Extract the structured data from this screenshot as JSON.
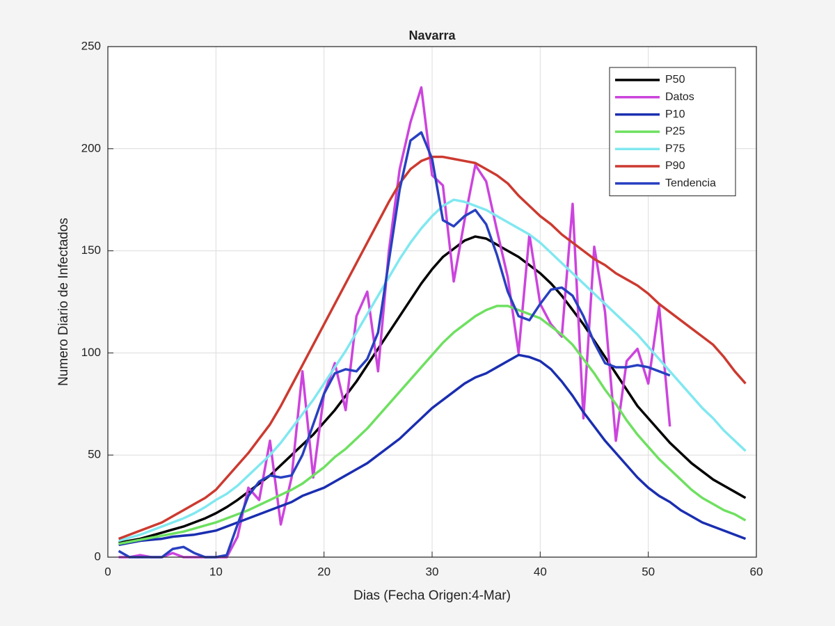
{
  "chart_data": {
    "type": "line",
    "title": "Navarra",
    "xlabel": "Dias (Fecha Origen:4-Mar)",
    "ylabel": "Numero Diario de Infectados",
    "xlim": [
      0,
      60
    ],
    "ylim": [
      0,
      250
    ],
    "xticks": [
      0,
      10,
      20,
      30,
      40,
      50,
      60
    ],
    "yticks": [
      0,
      50,
      100,
      150,
      200,
      250
    ],
    "grid": true,
    "legend": "upper right",
    "series": [
      {
        "name": "P50",
        "color": "#000000",
        "x": [
          1,
          2,
          3,
          4,
          5,
          6,
          7,
          8,
          9,
          10,
          11,
          12,
          13,
          14,
          15,
          16,
          17,
          18,
          19,
          20,
          21,
          22,
          23,
          24,
          25,
          26,
          27,
          28,
          29,
          30,
          31,
          32,
          33,
          34,
          35,
          36,
          37,
          38,
          39,
          40,
          41,
          42,
          43,
          44,
          45,
          46,
          47,
          48,
          49,
          50,
          51,
          52,
          53,
          54,
          55,
          56,
          57,
          58,
          59
        ],
        "values": [
          7,
          8,
          9,
          10.5,
          12,
          13.5,
          15,
          17,
          19,
          21.5,
          24.5,
          28,
          32,
          36,
          40,
          45,
          50,
          55,
          60,
          66,
          72,
          79,
          86,
          94,
          102,
          110,
          118,
          126,
          134,
          141,
          147,
          151,
          155,
          157,
          156,
          153,
          150,
          147,
          143,
          139,
          134,
          128,
          121,
          114,
          106,
          98,
          90,
          82,
          74,
          68,
          62,
          56,
          51,
          46,
          42,
          38,
          35,
          32,
          29
        ]
      },
      {
        "name": "Datos",
        "color": "#cc44dd",
        "x": [
          1,
          2,
          3,
          4,
          5,
          6,
          7,
          8,
          9,
          10,
          11,
          12,
          13,
          14,
          15,
          16,
          17,
          18,
          19,
          20,
          21,
          22,
          23,
          24,
          25,
          26,
          27,
          28,
          29,
          30,
          31,
          32,
          33,
          34,
          35,
          36,
          37,
          38,
          39,
          40,
          41,
          42,
          43,
          44,
          45,
          46,
          47,
          48,
          49,
          50,
          51,
          52
        ],
        "values": [
          0,
          0,
          1,
          0,
          0,
          2,
          0,
          0,
          0,
          0,
          0,
          10,
          34,
          28,
          57,
          16,
          39,
          91,
          39,
          80,
          95,
          72,
          118,
          130,
          91,
          150,
          190,
          213,
          230,
          187,
          182,
          135,
          165,
          192,
          184,
          160,
          137,
          100,
          158,
          124,
          114,
          108,
          173,
          68,
          152,
          120,
          57,
          96,
          102,
          85,
          123,
          64
        ]
      },
      {
        "name": "P10",
        "color": "#1a2eb0",
        "x": [
          1,
          2,
          3,
          4,
          5,
          6,
          7,
          8,
          9,
          10,
          11,
          12,
          13,
          14,
          15,
          16,
          17,
          18,
          19,
          20,
          21,
          22,
          23,
          24,
          25,
          26,
          27,
          28,
          29,
          30,
          31,
          32,
          33,
          34,
          35,
          36,
          37,
          38,
          39,
          40,
          41,
          42,
          43,
          44,
          45,
          46,
          47,
          48,
          49,
          50,
          51,
          52,
          53,
          54,
          55,
          56,
          57,
          58,
          59
        ],
        "values": [
          6,
          7,
          8,
          8.5,
          9,
          10,
          10.5,
          11,
          12,
          13,
          15,
          17,
          19,
          21,
          23,
          25,
          27,
          30,
          32,
          34,
          37,
          40,
          43,
          46,
          50,
          54,
          58,
          63,
          68,
          73,
          77,
          81,
          85,
          88,
          90,
          93,
          96,
          99,
          98,
          96,
          92,
          86,
          79,
          71,
          64,
          57,
          51,
          45,
          39,
          34,
          30,
          27,
          23,
          20,
          17,
          15,
          13,
          11,
          9
        ]
      },
      {
        "name": "P25",
        "color": "#6ee060",
        "x": [
          1,
          2,
          3,
          4,
          5,
          6,
          7,
          8,
          9,
          10,
          11,
          12,
          13,
          14,
          15,
          16,
          17,
          18,
          19,
          20,
          21,
          22,
          23,
          24,
          25,
          26,
          27,
          28,
          29,
          30,
          31,
          32,
          33,
          34,
          35,
          36,
          37,
          38,
          39,
          40,
          41,
          42,
          43,
          44,
          45,
          46,
          47,
          48,
          49,
          50,
          51,
          52,
          53,
          54,
          55,
          56,
          57,
          58,
          59
        ],
        "values": [
          6.5,
          7.5,
          8.5,
          9.5,
          10.5,
          11.5,
          12.5,
          14,
          15.5,
          17,
          19,
          21,
          23,
          25.5,
          28,
          30.5,
          33,
          36,
          40,
          44,
          49,
          53,
          58,
          63,
          69,
          75,
          81,
          87,
          93,
          99,
          105,
          110,
          114,
          118,
          121,
          123,
          123,
          121,
          119,
          117,
          113,
          109,
          104,
          97,
          90,
          82,
          75,
          67,
          60,
          54,
          48,
          43,
          38,
          33,
          29,
          26,
          23,
          21,
          18
        ]
      },
      {
        "name": "P75",
        "color": "#80e8f0",
        "x": [
          1,
          2,
          3,
          4,
          5,
          6,
          7,
          8,
          9,
          10,
          11,
          12,
          13,
          14,
          15,
          16,
          17,
          18,
          19,
          20,
          21,
          22,
          23,
          24,
          25,
          26,
          27,
          28,
          29,
          30,
          31,
          32,
          33,
          34,
          35,
          36,
          37,
          38,
          39,
          40,
          41,
          42,
          43,
          44,
          45,
          46,
          47,
          48,
          49,
          50,
          51,
          52,
          53,
          54,
          55,
          56,
          57,
          58,
          59
        ],
        "values": [
          8,
          9.5,
          11,
          13,
          15,
          17,
          19,
          21.5,
          24.5,
          28,
          31,
          35,
          40,
          45,
          50,
          56,
          63,
          70,
          77,
          85,
          93,
          101,
          110,
          119,
          128,
          137,
          146,
          154,
          161,
          167,
          172,
          175,
          174,
          172,
          170,
          167,
          164,
          161,
          158,
          154,
          149,
          144,
          139,
          134,
          129,
          124,
          119,
          114,
          109,
          103,
          97,
          91,
          85,
          79,
          73,
          68,
          62,
          57,
          52
        ]
      },
      {
        "name": "P90",
        "color": "#cc3a30",
        "x": [
          1,
          2,
          3,
          4,
          5,
          6,
          7,
          8,
          9,
          10,
          11,
          12,
          13,
          14,
          15,
          16,
          17,
          18,
          19,
          20,
          21,
          22,
          23,
          24,
          25,
          26,
          27,
          28,
          29,
          30,
          31,
          32,
          33,
          34,
          35,
          36,
          37,
          38,
          39,
          40,
          41,
          42,
          43,
          44,
          45,
          46,
          47,
          48,
          49,
          50,
          51,
          52,
          53,
          54,
          55,
          56,
          57,
          58,
          59
        ],
        "values": [
          9,
          11,
          13,
          15,
          17,
          20,
          23,
          26,
          29,
          33,
          39,
          45,
          51,
          58,
          65,
          74,
          84,
          94,
          104,
          114,
          124,
          134,
          144,
          154,
          164,
          174,
          183,
          190,
          194,
          196,
          196,
          195,
          194,
          193,
          190,
          187,
          183,
          177,
          172,
          167,
          163,
          158,
          154,
          150,
          146,
          143,
          139,
          136,
          133,
          129,
          124,
          120,
          116,
          112,
          108,
          104,
          98,
          91,
          85
        ]
      },
      {
        "name": "Tendencia",
        "color": "#2840c0",
        "x": [
          1,
          2,
          3,
          4,
          5,
          6,
          7,
          8,
          9,
          10,
          11,
          12,
          13,
          14,
          15,
          16,
          17,
          18,
          19,
          20,
          21,
          22,
          23,
          24,
          25,
          26,
          27,
          28,
          29,
          30,
          31,
          32,
          33,
          34,
          35,
          36,
          37,
          38,
          39,
          40,
          41,
          42,
          43,
          44,
          45,
          46,
          47,
          48,
          49,
          50,
          51,
          52
        ],
        "values": [
          3,
          0,
          0,
          0,
          0,
          4,
          5,
          2,
          0,
          0,
          1,
          16,
          30,
          37,
          40,
          39,
          40,
          50,
          65,
          80,
          90,
          92,
          91,
          97,
          110,
          145,
          180,
          204,
          208,
          195,
          165,
          162,
          167,
          170,
          163,
          148,
          130,
          118,
          116,
          124,
          131,
          132,
          128,
          118,
          105,
          95,
          93,
          93,
          94,
          93,
          91,
          89
        ]
      }
    ]
  }
}
